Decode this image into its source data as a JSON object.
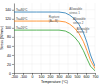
{
  "chart_data": {
    "type": "line",
    "xlabel": "Temperature (°C)",
    "ylabel": "Stress (N/mm²)",
    "x": [
      -200,
      50,
      300,
      370,
      420,
      470,
      520,
      570,
      610,
      650,
      700
    ],
    "series": [
      {
        "name": "Ts=80°C",
        "values": [
          135,
          135,
          135,
          133,
          128,
          120,
          108,
          90,
          68,
          40,
          15
        ]
      },
      {
        "name": "Ts=40°C",
        "values": [
          115,
          115,
          115,
          113,
          108,
          100,
          88,
          70,
          50,
          28,
          10
        ]
      },
      {
        "name": "Ts=20°C",
        "values": [
          95,
          95,
          95,
          93,
          88,
          80,
          68,
          50,
          32,
          15,
          5
        ]
      }
    ],
    "xlim": [
      -200,
      700
    ],
    "ylim": [
      0,
      155
    ],
    "xticks": [
      -200,
      -100,
      0,
      100,
      200,
      300,
      400,
      500,
      600,
      700
    ],
    "yticks": [
      0,
      20,
      40,
      60,
      80,
      100,
      120,
      140
    ],
    "grid": true,
    "annotations": [
      {
        "text": "Rupture\n(A₂₁₄B)",
        "x": 185,
        "y": 126
      },
      {
        "text": "Allowable\nstress 1",
        "x": 415,
        "y": 144
      },
      {
        "text": "Allowable\nstress 2",
        "x": 455,
        "y": 122
      },
      {
        "text": "Allowable\nstress 3",
        "x": 495,
        "y": 100
      }
    ]
  }
}
